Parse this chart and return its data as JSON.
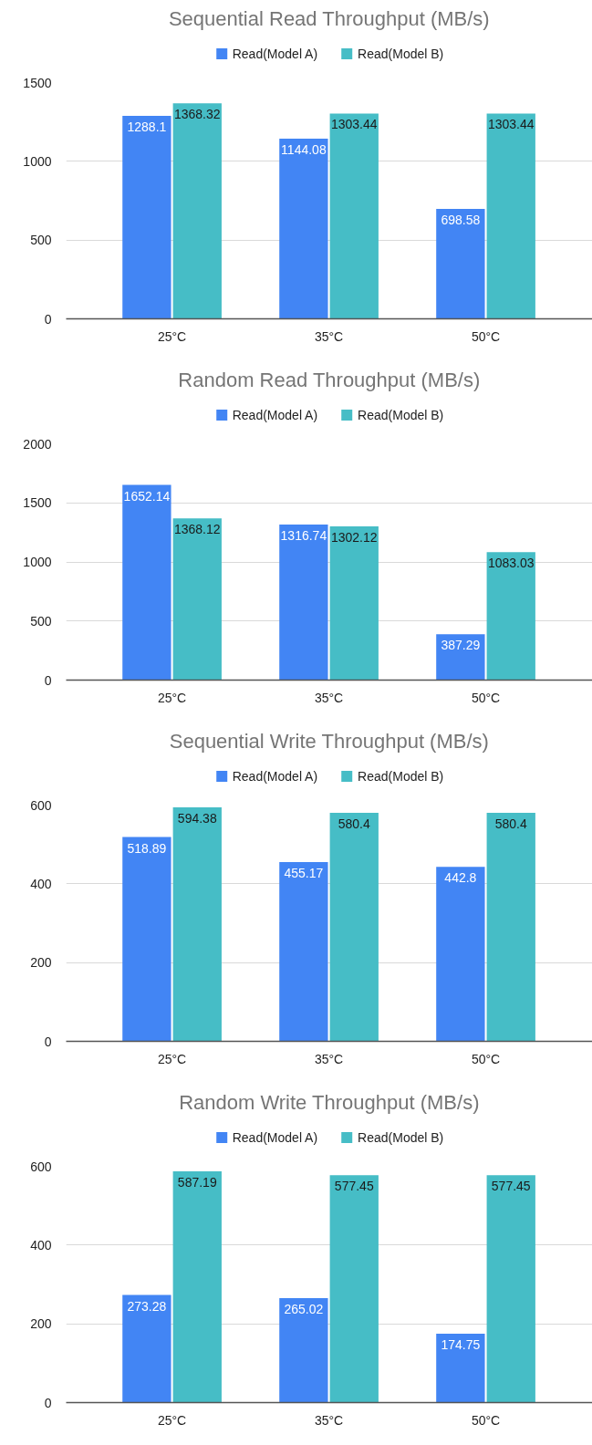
{
  "chart_data": [
    {
      "type": "bar",
      "title": "Sequential Read Throughput (MB/s)",
      "categories": [
        "25°C",
        "35°C",
        "50°C"
      ],
      "series": [
        {
          "name": "Read(Model A)",
          "color": "#4285f4",
          "values": [
            1288.1,
            1144.08,
            698.58
          ]
        },
        {
          "name": "Read(Model B)",
          "color": "#46bdc6",
          "values": [
            1368.32,
            1303.44,
            1303.44
          ]
        }
      ],
      "ylim": [
        0,
        1500
      ],
      "yticks": [
        0,
        500,
        1000,
        1500
      ],
      "grid": "y",
      "legend": "top",
      "data_labels": true
    },
    {
      "type": "bar",
      "title": "Random Read Throughput (MB/s)",
      "categories": [
        "25°C",
        "35°C",
        "50°C"
      ],
      "series": [
        {
          "name": "Read(Model A)",
          "color": "#4285f4",
          "values": [
            1652.14,
            1316.74,
            387.29
          ]
        },
        {
          "name": "Read(Model B)",
          "color": "#46bdc6",
          "values": [
            1368.12,
            1302.12,
            1083.03
          ]
        }
      ],
      "ylim": [
        0,
        2000
      ],
      "yticks": [
        0,
        500,
        1000,
        1500,
        2000
      ],
      "grid": "y",
      "legend": "top",
      "data_labels": true
    },
    {
      "type": "bar",
      "title": "Sequential Write Throughput (MB/s)",
      "categories": [
        "25°C",
        "35°C",
        "50°C"
      ],
      "series": [
        {
          "name": "Read(Model A)",
          "color": "#4285f4",
          "values": [
            518.89,
            455.17,
            442.8
          ]
        },
        {
          "name": "Read(Model B)",
          "color": "#46bdc6",
          "values": [
            594.38,
            580.4,
            580.4
          ]
        }
      ],
      "ylim": [
        0,
        600
      ],
      "yticks": [
        0,
        200,
        400,
        600
      ],
      "grid": "y",
      "legend": "top",
      "data_labels": true
    },
    {
      "type": "bar",
      "title": "Random Write Throughput (MB/s)",
      "categories": [
        "25°C",
        "35°C",
        "50°C"
      ],
      "series": [
        {
          "name": "Read(Model A)",
          "color": "#4285f4",
          "values": [
            273.28,
            265.02,
            174.75
          ]
        },
        {
          "name": "Read(Model B)",
          "color": "#46bdc6",
          "values": [
            587.19,
            577.45,
            577.45
          ]
        }
      ],
      "ylim": [
        0,
        600
      ],
      "yticks": [
        0,
        200,
        400,
        600
      ],
      "grid": "y",
      "legend": "top",
      "data_labels": true
    }
  ]
}
